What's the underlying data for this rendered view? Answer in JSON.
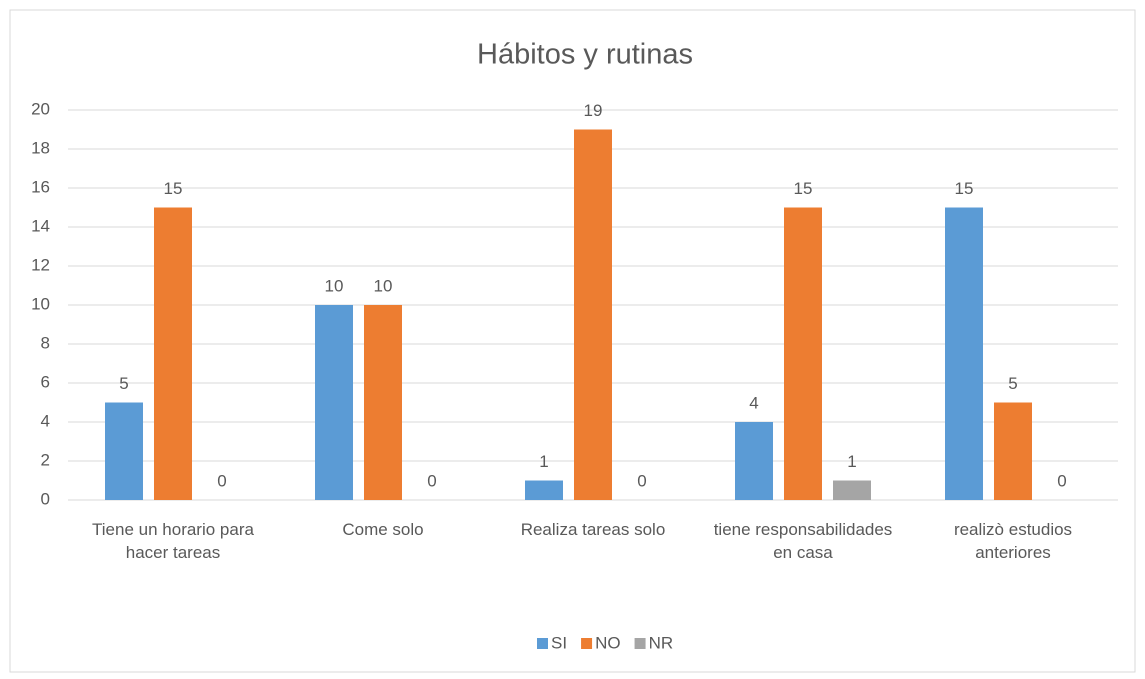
{
  "chart_data": {
    "type": "bar",
    "title": "Hábitos y rutinas",
    "categories": [
      "Tiene un horario para hacer tareas",
      "Come solo",
      "Realiza tareas solo",
      "tiene responsabilidades en casa",
      "realizò estudios anteriores"
    ],
    "series": [
      {
        "name": "SI",
        "color": "#5b9bd5",
        "values": [
          5,
          10,
          1,
          4,
          15
        ]
      },
      {
        "name": "NO",
        "color": "#ed7d31",
        "values": [
          15,
          10,
          19,
          15,
          5
        ]
      },
      {
        "name": "NR",
        "color": "#a5a5a5",
        "values": [
          0,
          0,
          0,
          1,
          0
        ]
      }
    ],
    "ylim": [
      0,
      20
    ],
    "yticks": [
      0,
      2,
      4,
      6,
      8,
      10,
      12,
      14,
      16,
      18,
      20
    ],
    "grid": true,
    "legend": "bottom"
  }
}
